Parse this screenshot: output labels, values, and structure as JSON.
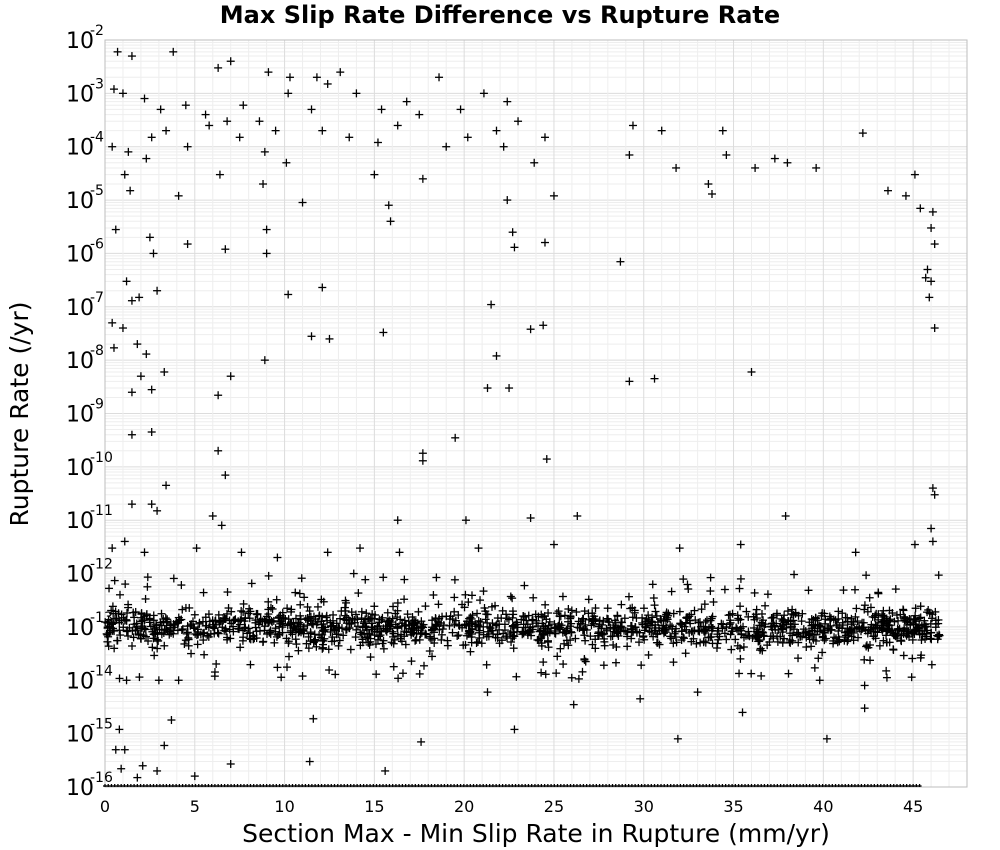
{
  "chart_data": {
    "type": "scatter",
    "title": "Max Slip Rate Difference vs Rupture Rate",
    "xlabel": "Section Max - Min Slip Rate in Rupture (mm/yr)",
    "ylabel": "Rupture Rate (/yr)",
    "xlim": [
      0,
      48
    ],
    "ylim": [
      1e-16,
      0.01
    ],
    "yscale": "log",
    "grid": true,
    "marker": "+",
    "marker_color": "#000000",
    "x_ticks": [
      "0",
      "5",
      "10",
      "15",
      "20",
      "25",
      "30",
      "35",
      "40",
      "45"
    ],
    "y_ticks": [
      {
        "base": "10",
        "exp": "-2"
      },
      {
        "base": "10",
        "exp": "-3"
      },
      {
        "base": "10",
        "exp": "-4"
      },
      {
        "base": "10",
        "exp": "-5"
      },
      {
        "base": "10",
        "exp": "-6"
      },
      {
        "base": "10",
        "exp": "-7"
      },
      {
        "base": "10",
        "exp": "-8"
      },
      {
        "base": "10",
        "exp": "-9"
      },
      {
        "base": "10",
        "exp": "-10"
      },
      {
        "base": "10",
        "exp": "-11"
      },
      {
        "base": "10",
        "exp": "-12"
      },
      {
        "base": "10",
        "exp": "-13"
      },
      {
        "base": "10",
        "exp": "-14"
      },
      {
        "base": "10",
        "exp": "-15"
      },
      {
        "base": "10",
        "exp": "-16"
      }
    ],
    "series": [
      {
        "points": [
          [
            0.7,
            0.006
          ],
          [
            1.5,
            0.005
          ],
          [
            3.8,
            0.006
          ],
          [
            6.3,
            0.003
          ],
          [
            7.0,
            0.004
          ],
          [
            9.1,
            0.0025
          ],
          [
            10.3,
            0.002
          ],
          [
            11.8,
            0.002
          ],
          [
            12.4,
            0.0015
          ],
          [
            13.1,
            0.0025
          ],
          [
            18.6,
            0.002
          ],
          [
            21.1,
            0.001
          ],
          [
            22.4,
            0.0007
          ],
          [
            0.5,
            0.0012
          ],
          [
            1.0,
            0.001
          ],
          [
            2.2,
            0.0008
          ],
          [
            3.1,
            0.0005
          ],
          [
            4.5,
            0.0006
          ],
          [
            5.6,
            0.0004
          ],
          [
            6.8,
            0.0003
          ],
          [
            7.7,
            0.0006
          ],
          [
            8.6,
            0.0003
          ],
          [
            9.5,
            0.0002
          ],
          [
            10.2,
            0.001
          ],
          [
            11.5,
            0.0005
          ],
          [
            14.0,
            0.001
          ],
          [
            15.4,
            0.0005
          ],
          [
            16.8,
            0.0007
          ],
          [
            17.5,
            0.0004
          ],
          [
            19.8,
            0.0005
          ],
          [
            21.8,
            0.0002
          ],
          [
            23.0,
            0.0003
          ],
          [
            24.5,
            0.00015
          ],
          [
            29.4,
            0.00025
          ],
          [
            31.0,
            0.0002
          ],
          [
            34.4,
            0.0002
          ],
          [
            42.2,
            0.00018
          ],
          [
            0.4,
            0.0001
          ],
          [
            1.3,
            8e-05
          ],
          [
            2.6,
            0.00015
          ],
          [
            3.4,
            0.0002
          ],
          [
            4.6,
            0.0001
          ],
          [
            5.8,
            0.00025
          ],
          [
            7.5,
            0.00015
          ],
          [
            8.9,
            8e-05
          ],
          [
            10.1,
            5e-05
          ],
          [
            12.1,
            0.0002
          ],
          [
            13.6,
            0.00015
          ],
          [
            15.2,
            0.00012
          ],
          [
            16.3,
            0.00025
          ],
          [
            19.0,
            0.0001
          ],
          [
            20.2,
            0.00015
          ],
          [
            22.2,
            0.0001
          ],
          [
            23.9,
            5e-05
          ],
          [
            29.2,
            7e-05
          ],
          [
            31.8,
            4e-05
          ],
          [
            34.6,
            7e-05
          ],
          [
            36.2,
            4e-05
          ],
          [
            37.3,
            6e-05
          ],
          [
            38.0,
            5e-05
          ],
          [
            39.6,
            4e-05
          ],
          [
            1.1,
            3e-05
          ],
          [
            1.4,
            1.5e-05
          ],
          [
            2.3,
            6e-05
          ],
          [
            4.1,
            1.2e-05
          ],
          [
            6.4,
            3e-05
          ],
          [
            8.8,
            2e-05
          ],
          [
            11.0,
            9e-06
          ],
          [
            15.0,
            3e-05
          ],
          [
            15.8,
            8e-06
          ],
          [
            17.7,
            2.5e-05
          ],
          [
            22.4,
            1e-05
          ],
          [
            25.0,
            1.2e-05
          ],
          [
            33.6,
            2e-05
          ],
          [
            33.8,
            1.3e-05
          ],
          [
            43.6,
            1.5e-05
          ],
          [
            44.6,
            1.2e-05
          ],
          [
            45.1,
            3e-05
          ],
          [
            45.4,
            7e-06
          ],
          [
            46.1,
            6e-06
          ],
          [
            0.6,
            2.8e-06
          ],
          [
            2.5,
            2e-06
          ],
          [
            2.7,
            1e-06
          ],
          [
            4.6,
            1.5e-06
          ],
          [
            6.7,
            1.2e-06
          ],
          [
            9.0,
            1e-06
          ],
          [
            9.0,
            2.8e-06
          ],
          [
            15.9,
            4e-06
          ],
          [
            22.7,
            2.5e-06
          ],
          [
            22.8,
            1.3e-06
          ],
          [
            24.5,
            1.6e-06
          ],
          [
            28.7,
            7e-07
          ],
          [
            46.0,
            3e-06
          ],
          [
            46.2,
            1.5e-06
          ],
          [
            45.8,
            5e-07
          ],
          [
            45.7,
            3.5e-07
          ],
          [
            1.2,
            3e-07
          ],
          [
            1.5,
            1.3e-07
          ],
          [
            1.9,
            1.5e-07
          ],
          [
            2.9,
            2e-07
          ],
          [
            10.2,
            1.7e-07
          ],
          [
            12.1,
            2.3e-07
          ],
          [
            21.5,
            1.1e-07
          ],
          [
            45.9,
            1.5e-07
          ],
          [
            46.0,
            3e-07
          ],
          [
            46.2,
            4e-08
          ],
          [
            0.4,
            5e-08
          ],
          [
            0.5,
            1.7e-08
          ],
          [
            1.0,
            4e-08
          ],
          [
            1.8,
            2e-08
          ],
          [
            2.3,
            1.3e-08
          ],
          [
            11.5,
            2.8e-08
          ],
          [
            12.5,
            2.5e-08
          ],
          [
            15.5,
            3.3e-08
          ],
          [
            23.7,
            3.8e-08
          ],
          [
            24.4,
            4.5e-08
          ],
          [
            21.8,
            1.2e-08
          ],
          [
            7.0,
            5e-09
          ],
          [
            8.9,
            1e-08
          ],
          [
            36.0,
            6e-09
          ],
          [
            1.5,
            2.5e-09
          ],
          [
            2.0,
            5e-09
          ],
          [
            2.6,
            2.8e-09
          ],
          [
            3.3,
            6e-09
          ],
          [
            6.3,
            2.2e-09
          ],
          [
            21.3,
            3e-09
          ],
          [
            22.5,
            3e-09
          ],
          [
            29.2,
            4e-09
          ],
          [
            30.6,
            4.5e-09
          ],
          [
            1.5,
            4e-10
          ],
          [
            2.6,
            4.5e-10
          ],
          [
            19.5,
            3.5e-10
          ],
          [
            6.3,
            2e-10
          ],
          [
            6.7,
            7e-11
          ],
          [
            17.7,
            1.8e-10
          ],
          [
            17.7,
            1.3e-10
          ],
          [
            24.6,
            1.4e-10
          ],
          [
            3.4,
            4.5e-11
          ],
          [
            46.1,
            4e-11
          ],
          [
            46.2,
            3e-11
          ],
          [
            1.5,
            2e-11
          ],
          [
            2.6,
            2e-11
          ],
          [
            2.9,
            1.5e-11
          ],
          [
            6.0,
            1.2e-11
          ],
          [
            6.5,
            8e-12
          ],
          [
            16.3,
            1e-11
          ],
          [
            20.1,
            1e-11
          ],
          [
            23.7,
            1.1e-11
          ],
          [
            26.3,
            1.2e-11
          ],
          [
            37.9,
            1.2e-11
          ],
          [
            46.0,
            7e-12
          ],
          [
            46.1,
            4e-12
          ],
          [
            45.1,
            3.5e-12
          ],
          [
            0.4,
            3e-12
          ],
          [
            1.1,
            4e-12
          ],
          [
            2.2,
            2.5e-12
          ],
          [
            5.1,
            3e-12
          ],
          [
            7.6,
            2.5e-12
          ],
          [
            9.6,
            2e-12
          ],
          [
            12.4,
            2.5e-12
          ],
          [
            14.2,
            3e-12
          ],
          [
            16.4,
            2.5e-12
          ],
          [
            20.8,
            3e-12
          ],
          [
            25.0,
            3.5e-12
          ],
          [
            32.0,
            3e-12
          ],
          [
            35.4,
            3.5e-12
          ],
          [
            41.8,
            2.5e-12
          ],
          [
            0.8,
            1.2e-15
          ],
          [
            0.6,
            5e-16
          ],
          [
            1.1,
            5e-16
          ],
          [
            3.3,
            6e-16
          ],
          [
            3.7,
            1.8e-15
          ],
          [
            11.6,
            1.9e-15
          ],
          [
            11.4,
            3e-16
          ],
          [
            15.6,
            2e-16
          ],
          [
            17.6,
            7e-16
          ],
          [
            22.8,
            1.2e-15
          ],
          [
            31.9,
            8e-16
          ],
          [
            35.5,
            2.5e-15
          ],
          [
            40.2,
            8e-16
          ],
          [
            42.3,
            3e-15
          ],
          [
            0.9,
            2.2e-16
          ],
          [
            1.8,
            1.5e-16
          ],
          [
            2.1,
            2.5e-16
          ],
          [
            2.9,
            2e-16
          ],
          [
            5.0,
            1.6e-16
          ],
          [
            7.0,
            2.7e-16
          ],
          [
            1.2,
            1e-14
          ],
          [
            3.0,
            1e-14
          ],
          [
            4.1,
            1e-14
          ],
          [
            11.0,
            1.2e-14
          ],
          [
            15.1,
            1.3e-14
          ],
          [
            21.3,
            6e-15
          ],
          [
            26.1,
            3.5e-15
          ],
          [
            29.8,
            4.5e-15
          ],
          [
            33.0,
            6e-15
          ],
          [
            39.8,
            1e-14
          ],
          [
            42.3,
            8e-15
          ],
          [
            43.5,
            1.5e-14
          ]
        ],
        "dense_band": {
          "x_range": [
            0,
            46.5
          ],
          "y_center": 1e-13,
          "y_spread_decades": 0.35
        },
        "floor_row": {
          "x_range": [
            0,
            45.5
          ],
          "y": 1e-16
        }
      }
    ]
  }
}
